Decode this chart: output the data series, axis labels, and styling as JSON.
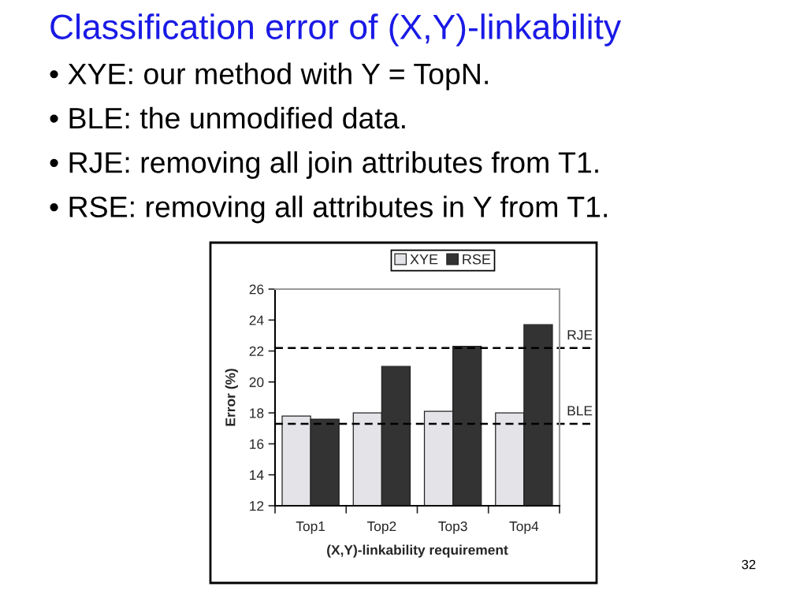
{
  "chart_data": {
    "type": "bar",
    "title": "Classification error of (X,Y)-linkability",
    "annotations": [
      "• XYE: our method with Y = TopN.",
      "• BLE: the unmodified data.",
      "• RJE: removing all join attributes from T1.",
      "• RSE: removing all attributes in Y from T1.",
      "32"
    ],
    "xlabel": "(X,Y)-linkability requirement",
    "ylabel": "Error (%)",
    "categories": [
      "Top1",
      "Top2",
      "Top3",
      "Top4"
    ],
    "series": [
      {
        "name": "XYE",
        "color": "#e4e4e8",
        "values": [
          17.8,
          18.0,
          18.1,
          18.0
        ]
      },
      {
        "name": "RSE",
        "color": "#333333",
        "values": [
          17.6,
          21.0,
          22.3,
          23.7
        ]
      }
    ],
    "ylim": [
      12,
      26
    ],
    "yticks": [
      12,
      14,
      16,
      18,
      20,
      22,
      24,
      26
    ],
    "ref_lines": [
      {
        "axis": "y",
        "value": 22.2,
        "label": "RJE",
        "line_style": "dashed",
        "color": "#000000"
      },
      {
        "axis": "y",
        "value": 17.3,
        "label": "BLE",
        "line_style": "dashed",
        "color": "#000000"
      }
    ],
    "legend": "top",
    "grid": false
  }
}
